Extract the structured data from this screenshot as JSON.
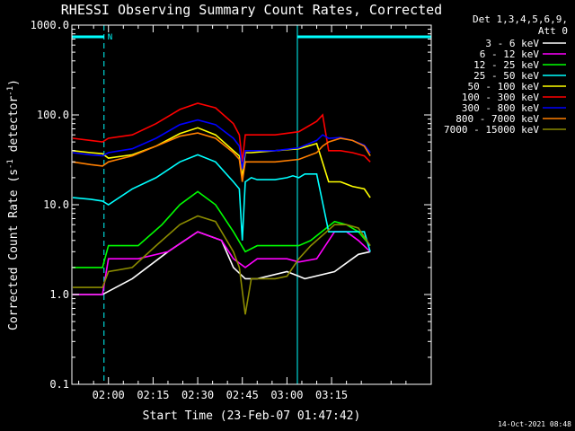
{
  "chart_data": {
    "type": "line",
    "title": "RHESSI Observing Summary Count Rates, Corrected",
    "xlabel": "Start Time (23-Feb-07 01:47:42)",
    "ylabel_main": "Corrected Count Rate (s",
    "ylabel_sup1": "-1",
    "ylabel_mid": " detector",
    "ylabel_sup2": "-1",
    "ylabel_end": ")",
    "y_scale": "log",
    "ylim": [
      0.1,
      1000
    ],
    "x_range_min": [
      107.7,
      228.5
    ],
    "x_ticks": [
      {
        "min": 120,
        "label": "02:00"
      },
      {
        "min": 135,
        "label": "02:15"
      },
      {
        "min": 150,
        "label": "02:30"
      },
      {
        "min": 165,
        "label": "02:45"
      },
      {
        "min": 180,
        "label": "03:00"
      },
      {
        "min": 195,
        "label": "03:15"
      }
    ],
    "y_ticks": [
      {
        "v": 1000,
        "label": "1000.0"
      },
      {
        "v": 100,
        "label": "100.0"
      },
      {
        "v": 10,
        "label": "10.0"
      },
      {
        "v": 1,
        "label": "1.0"
      },
      {
        "v": 0.1,
        "label": "0.1"
      }
    ],
    "legend_header": [
      "Det 1,3,4,5,6,9,",
      "Att 0"
    ],
    "legend_position": "top-right",
    "night_flag_label": "N",
    "night_intervals": [
      [
        107.7,
        118.5
      ],
      [
        183.5,
        228.5
      ]
    ],
    "orbit_markers": [
      {
        "min": 107.7,
        "style": "solid"
      },
      {
        "min": 118.5,
        "style": "dashed"
      },
      {
        "min": 183.5,
        "style": "solid"
      },
      {
        "min": 228.5,
        "style": "dashed"
      }
    ],
    "series": [
      {
        "name": "3 - 6 keV",
        "color": "#ffffff",
        "points": [
          [
            108,
            1
          ],
          [
            118,
            1
          ],
          [
            128,
            1.5
          ],
          [
            140,
            3
          ],
          [
            150,
            5
          ],
          [
            158,
            4
          ],
          [
            162,
            2
          ],
          [
            166,
            1.5
          ],
          [
            170,
            1.5
          ],
          [
            180,
            1.8
          ],
          [
            184,
            1.6
          ],
          [
            186,
            1.5
          ],
          [
            196,
            1.8
          ],
          [
            204,
            2.8
          ],
          [
            208,
            3
          ]
        ]
      },
      {
        "name": "6 - 12 keV",
        "color": "#ff00ff",
        "points": [
          [
            108,
            1
          ],
          [
            118,
            1
          ],
          [
            120,
            2.5
          ],
          [
            130,
            2.5
          ],
          [
            140,
            3
          ],
          [
            150,
            5
          ],
          [
            158,
            4
          ],
          [
            162,
            2.5
          ],
          [
            166,
            2
          ],
          [
            170,
            2.5
          ],
          [
            180,
            2.5
          ],
          [
            184,
            2.3
          ],
          [
            190,
            2.5
          ],
          [
            196,
            5
          ],
          [
            200,
            5
          ],
          [
            204,
            4
          ],
          [
            208,
            3
          ]
        ]
      },
      {
        "name": "12 - 25 keV",
        "color": "#00ff00",
        "points": [
          [
            108,
            2
          ],
          [
            118,
            2
          ],
          [
            120,
            3.5
          ],
          [
            130,
            3.5
          ],
          [
            138,
            6
          ],
          [
            144,
            10
          ],
          [
            150,
            14
          ],
          [
            156,
            10
          ],
          [
            162,
            5
          ],
          [
            166,
            3
          ],
          [
            170,
            3.5
          ],
          [
            180,
            3.5
          ],
          [
            184,
            3.5
          ],
          [
            188,
            4
          ],
          [
            196,
            6.5
          ],
          [
            200,
            6
          ],
          [
            204,
            5
          ],
          [
            208,
            3.5
          ]
        ]
      },
      {
        "name": "25 - 50 keV",
        "color": "#00ffff",
        "points": [
          [
            108,
            12
          ],
          [
            114,
            11.5
          ],
          [
            118,
            11
          ],
          [
            120,
            10
          ],
          [
            128,
            15
          ],
          [
            136,
            20
          ],
          [
            144,
            30
          ],
          [
            150,
            36
          ],
          [
            156,
            30
          ],
          [
            162,
            18
          ],
          [
            164,
            15
          ],
          [
            165,
            4
          ],
          [
            166,
            18
          ],
          [
            168,
            20
          ],
          [
            170,
            19
          ],
          [
            176,
            19
          ],
          [
            180,
            20
          ],
          [
            182,
            21
          ],
          [
            184,
            20
          ],
          [
            186,
            22
          ],
          [
            190,
            22
          ],
          [
            194,
            5
          ],
          [
            198,
            5
          ],
          [
            202,
            5
          ],
          [
            206,
            5
          ],
          [
            208,
            3
          ]
        ]
      },
      {
        "name": "50 - 100 keV",
        "color": "#ffff00",
        "points": [
          [
            108,
            40
          ],
          [
            114,
            38
          ],
          [
            118,
            37
          ],
          [
            120,
            33
          ],
          [
            128,
            36
          ],
          [
            136,
            45
          ],
          [
            144,
            62
          ],
          [
            150,
            72
          ],
          [
            156,
            60
          ],
          [
            162,
            40
          ],
          [
            164,
            35
          ],
          [
            165,
            20
          ],
          [
            166,
            38
          ],
          [
            168,
            38
          ],
          [
            176,
            40
          ],
          [
            184,
            42
          ],
          [
            190,
            48
          ],
          [
            194,
            18
          ],
          [
            198,
            18
          ],
          [
            202,
            16
          ],
          [
            206,
            15
          ],
          [
            208,
            12
          ]
        ]
      },
      {
        "name": "100 - 300 keV",
        "color": "#ff0000",
        "points": [
          [
            108,
            55
          ],
          [
            114,
            52
          ],
          [
            118,
            50
          ],
          [
            120,
            55
          ],
          [
            128,
            60
          ],
          [
            136,
            80
          ],
          [
            144,
            115
          ],
          [
            150,
            135
          ],
          [
            156,
            120
          ],
          [
            162,
            80
          ],
          [
            164,
            60
          ],
          [
            165,
            30
          ],
          [
            166,
            60
          ],
          [
            168,
            60
          ],
          [
            176,
            60
          ],
          [
            184,
            65
          ],
          [
            190,
            85
          ],
          [
            192,
            100
          ],
          [
            194,
            40
          ],
          [
            198,
            40
          ],
          [
            202,
            38
          ],
          [
            206,
            35
          ],
          [
            208,
            30
          ]
        ]
      },
      {
        "name": "300 - 800 keV",
        "color": "#0000ff",
        "points": [
          [
            108,
            38
          ],
          [
            114,
            36
          ],
          [
            118,
            35
          ],
          [
            120,
            38
          ],
          [
            128,
            42
          ],
          [
            136,
            55
          ],
          [
            144,
            78
          ],
          [
            150,
            88
          ],
          [
            156,
            78
          ],
          [
            162,
            55
          ],
          [
            164,
            45
          ],
          [
            165,
            25
          ],
          [
            166,
            40
          ],
          [
            168,
            40
          ],
          [
            176,
            40
          ],
          [
            184,
            43
          ],
          [
            190,
            52
          ],
          [
            192,
            60
          ],
          [
            194,
            55
          ],
          [
            198,
            56
          ],
          [
            202,
            52
          ],
          [
            206,
            46
          ],
          [
            208,
            38
          ]
        ]
      },
      {
        "name": "800 - 7000 keV",
        "color": "#ff7f00",
        "points": [
          [
            108,
            30
          ],
          [
            114,
            28
          ],
          [
            118,
            27
          ],
          [
            120,
            30
          ],
          [
            128,
            35
          ],
          [
            136,
            45
          ],
          [
            144,
            58
          ],
          [
            150,
            63
          ],
          [
            156,
            55
          ],
          [
            162,
            38
          ],
          [
            164,
            32
          ],
          [
            165,
            18
          ],
          [
            166,
            30
          ],
          [
            168,
            30
          ],
          [
            176,
            30
          ],
          [
            184,
            32
          ],
          [
            190,
            38
          ],
          [
            192,
            45
          ],
          [
            194,
            50
          ],
          [
            198,
            55
          ],
          [
            202,
            52
          ],
          [
            206,
            45
          ],
          [
            208,
            35
          ]
        ]
      },
      {
        "name": "7000 - 15000 keV",
        "color": "#8b8b00",
        "points": [
          [
            108,
            1.2
          ],
          [
            118,
            1.2
          ],
          [
            120,
            1.8
          ],
          [
            128,
            2
          ],
          [
            136,
            3.5
          ],
          [
            144,
            6
          ],
          [
            150,
            7.5
          ],
          [
            156,
            6.5
          ],
          [
            162,
            3
          ],
          [
            164,
            2
          ],
          [
            166,
            0.6
          ],
          [
            168,
            1.5
          ],
          [
            176,
            1.5
          ],
          [
            180,
            1.6
          ],
          [
            184,
            2.5
          ],
          [
            188,
            3.5
          ],
          [
            196,
            6
          ],
          [
            200,
            6
          ],
          [
            204,
            5.5
          ],
          [
            208,
            3.5
          ]
        ]
      }
    ]
  },
  "footer": {
    "timestamp": "14-Oct-2021 08:48"
  }
}
